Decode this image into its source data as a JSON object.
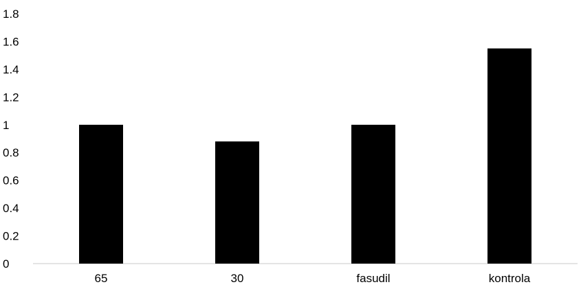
{
  "chart_data": {
    "type": "bar",
    "categories": [
      "65",
      "30",
      "fasudil",
      "kontrola"
    ],
    "values": [
      1.0,
      0.88,
      1.0,
      1.55
    ],
    "title": "",
    "xlabel": "",
    "ylabel": "",
    "ylim": [
      0,
      1.8
    ],
    "yticks": [
      "0",
      "0.2",
      "0.4",
      "0.6",
      "0.8",
      "1",
      "1.2",
      "1.4",
      "1.6",
      "1.8"
    ],
    "grid": false,
    "legend": "none",
    "colors": {
      "bar": "#000000",
      "axis": "#c8c8c8"
    }
  }
}
